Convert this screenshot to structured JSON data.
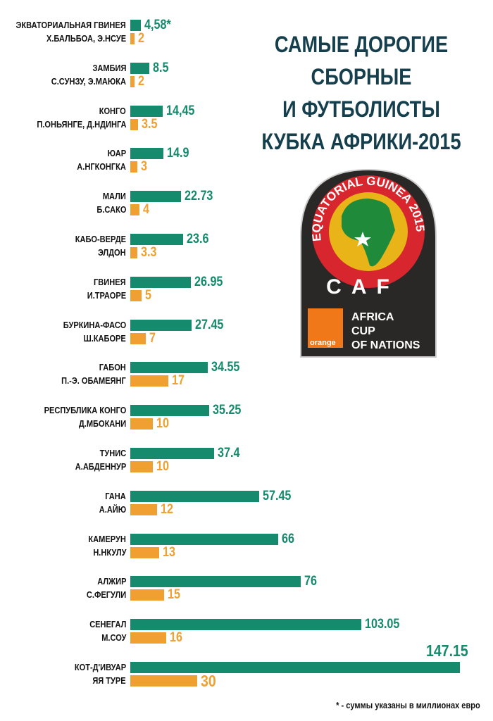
{
  "chart_data": {
    "type": "bar",
    "orientation": "horizontal",
    "title_lines": [
      "САМЫЕ ДОРОГИЕ",
      "СБОРНЫЕ",
      "И ФУТБОЛИСТЫ",
      "КУБКА АФРИКИ-2015"
    ],
    "footnote": "* - суммы указаны в миллионах евро",
    "colors": {
      "team": "#158a6c",
      "player": "#f0a030",
      "title": "#163f4d"
    },
    "groups": [
      {
        "team": "ЭКВАТОРИАЛЬНАЯ ГВИНЕЯ",
        "team_value": 4.58,
        "team_label": "4,58*",
        "player": "Х.БАЛЬБОА, Э.НСУЕ",
        "player_value": 2,
        "player_label": "2"
      },
      {
        "team": "ЗАМБИЯ",
        "team_value": 8.5,
        "team_label": "8.5",
        "player": "С.СУНЗУ, Э.МАЮКА",
        "player_value": 2,
        "player_label": "2"
      },
      {
        "team": "КОНГО",
        "team_value": 14.45,
        "team_label": "14,45",
        "player": "П.ОНЬЯНГЕ, Д.НДИНГА",
        "player_value": 3.5,
        "player_label": "3.5"
      },
      {
        "team": "ЮАР",
        "team_value": 14.9,
        "team_label": "14.9",
        "player": "А.НГКОНГКА",
        "player_value": 3,
        "player_label": "3"
      },
      {
        "team": "МАЛИ",
        "team_value": 22.73,
        "team_label": "22.73",
        "player": "Б.САКО",
        "player_value": 4,
        "player_label": "4"
      },
      {
        "team": "КАБО-ВЕРДЕ",
        "team_value": 23.6,
        "team_label": "23.6",
        "player": "ЭЛДОН",
        "player_value": 3.3,
        "player_label": "3.3"
      },
      {
        "team": "ГВИНЕЯ",
        "team_value": 26.95,
        "team_label": "26.95",
        "player": "И.ТРАОРЕ",
        "player_value": 5,
        "player_label": "5"
      },
      {
        "team": "БУРКИНА-ФАСО",
        "team_value": 27.45,
        "team_label": "27.45",
        "player": "Ш.КАБОРЕ",
        "player_value": 7,
        "player_label": "7"
      },
      {
        "team": "ГАБОН",
        "team_value": 34.55,
        "team_label": "34.55",
        "player": "П.-Э. ОБАМЕЯНГ",
        "player_value": 17,
        "player_label": "17"
      },
      {
        "team": "РЕСПУБЛИКА КОНГО",
        "team_value": 35.25,
        "team_label": "35.25",
        "player": "Д.МБОКАНИ",
        "player_value": 10,
        "player_label": "10"
      },
      {
        "team": "ТУНИС",
        "team_value": 37.4,
        "team_label": "37.4",
        "player": "А.АБДЕННУР",
        "player_value": 10,
        "player_label": "10"
      },
      {
        "team": "ГАНА",
        "team_value": 57.45,
        "team_label": "57.45",
        "player": "А.АЙЮ",
        "player_value": 12,
        "player_label": "12"
      },
      {
        "team": "КАМЕРУН",
        "team_value": 66,
        "team_label": "66",
        "player": "Н.НКУЛУ",
        "player_value": 13,
        "player_label": "13"
      },
      {
        "team": "АЛЖИР",
        "team_value": 76,
        "team_label": "76",
        "player": "С.ФЕГУЛИ",
        "player_value": 15,
        "player_label": "15"
      },
      {
        "team": "СЕНЕГАЛ",
        "team_value": 103.05,
        "team_label": "103.05",
        "player": "М.СОУ",
        "player_value": 16,
        "player_label": "16"
      },
      {
        "team": "КОТ-Д'ИВУАР",
        "team_value": 147.15,
        "team_label": "147.15",
        "player": "ЯЯ ТУРЕ",
        "player_value": 30,
        "player_label": "30"
      }
    ]
  },
  "logo": {
    "ring_text": "EQUATORIAL GUINEA 2015",
    "caf": "CAF",
    "brand": "orange",
    "tm": "™",
    "event_lines": [
      "AFRICA",
      "CUP",
      "OF NATIONS"
    ]
  }
}
